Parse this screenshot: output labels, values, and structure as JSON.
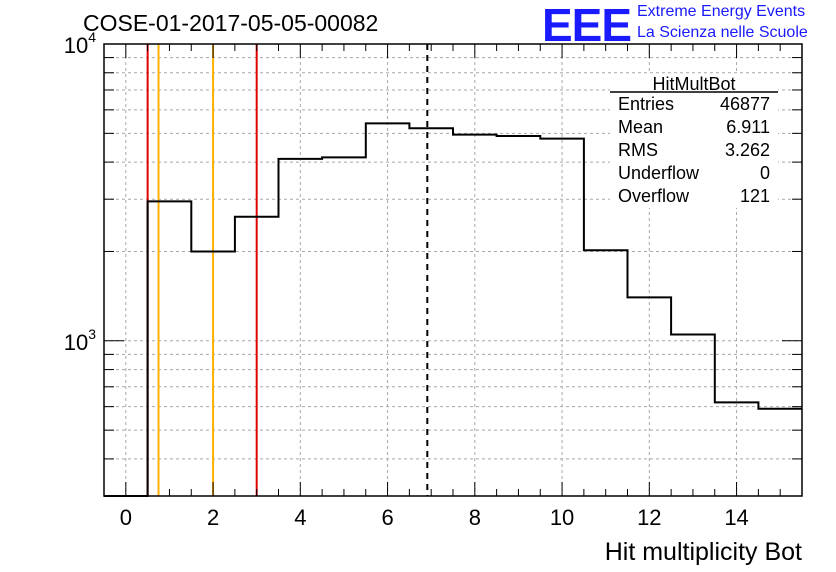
{
  "header": {
    "title": "COSE-01-2017-05-05-00082",
    "logo_text": "EEE",
    "logo_line1": "Extreme Energy Events",
    "logo_line2": "La Scienza nelle Scuole"
  },
  "stats_box": {
    "name": "HitMultBot",
    "rows": [
      {
        "label": "Entries",
        "value": "46877"
      },
      {
        "label": "Mean",
        "value": "6.911"
      },
      {
        "label": "RMS",
        "value": "3.262"
      },
      {
        "label": "Underflow",
        "value": "0"
      },
      {
        "label": "Overflow",
        "value": "121"
      }
    ]
  },
  "chart_data": {
    "type": "histogram",
    "title": "COSE-01-2017-05-05-00082",
    "xlabel": "Hit multiplicity Bot",
    "ylabel": "",
    "xlim": [
      -0.5,
      15.5
    ],
    "ylim": [
      300,
      10000
    ],
    "yscale": "log",
    "grid": true,
    "bin_edges": [
      -0.5,
      0.5,
      1.5,
      2.5,
      3.5,
      4.5,
      5.5,
      6.5,
      7.5,
      8.5,
      9.5,
      10.5,
      11.5,
      12.5,
      13.5,
      14.5,
      15.5
    ],
    "counts": [
      0,
      2950,
      2000,
      2620,
      4100,
      4150,
      5400,
      5200,
      4950,
      4900,
      4800,
      2020,
      1400,
      1050,
      620,
      590
    ],
    "x_ticks": [
      "0",
      "2",
      "4",
      "6",
      "8",
      "10",
      "12",
      "14"
    ],
    "x_tick_values": [
      0,
      2,
      4,
      6,
      8,
      10,
      12,
      14
    ],
    "y_major_ticks": [
      1000,
      10000
    ],
    "vertical_lines": [
      {
        "x": 0.5,
        "color": "#e00000",
        "style": "solid"
      },
      {
        "x": 0.75,
        "color": "#ffb000",
        "style": "solid"
      },
      {
        "x": 2.0,
        "color": "#ffb000",
        "style": "solid"
      },
      {
        "x": 3.0,
        "color": "#e00000",
        "style": "solid"
      },
      {
        "x": 6.911,
        "color": "#000000",
        "style": "dashed"
      }
    ]
  }
}
